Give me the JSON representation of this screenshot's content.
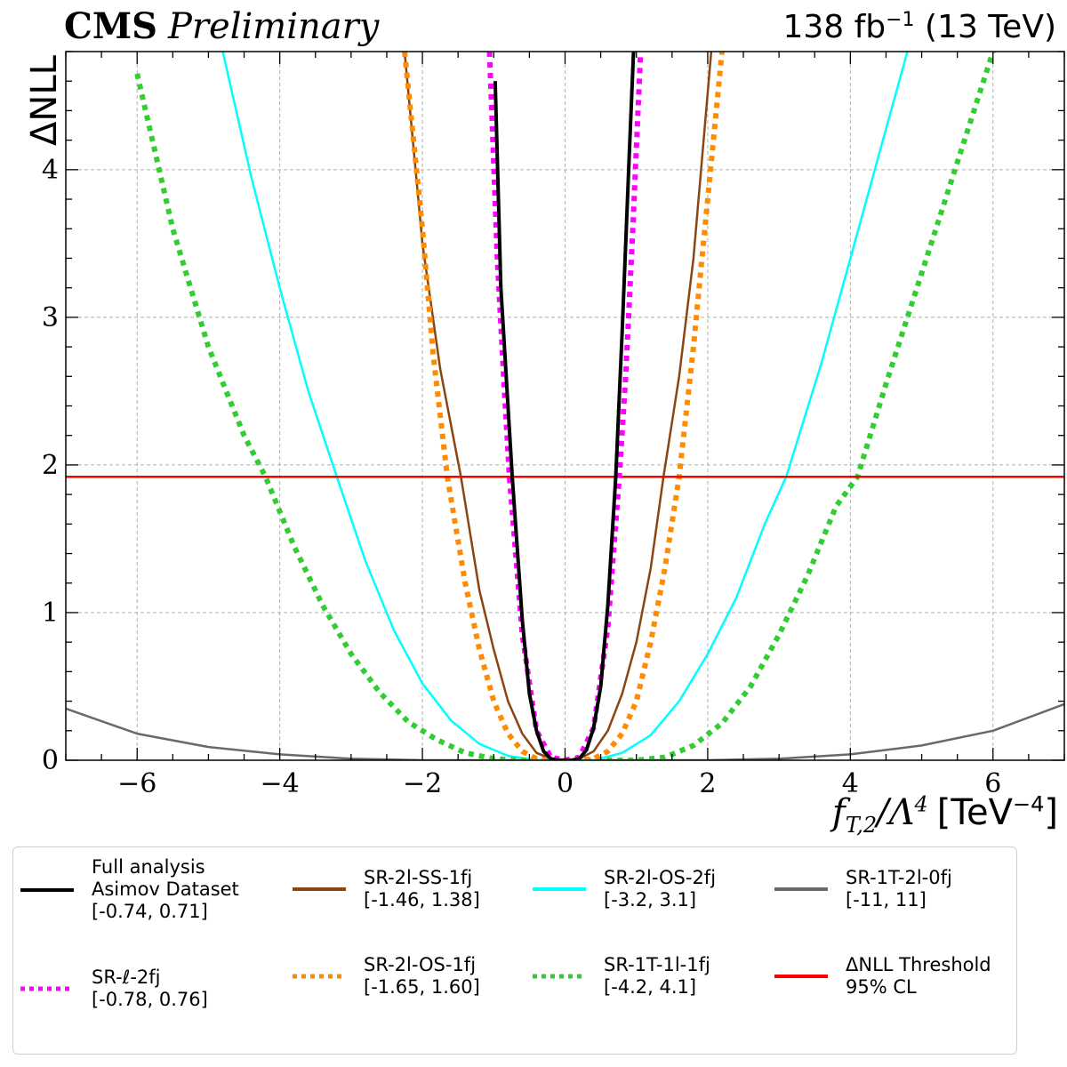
{
  "header": {
    "experiment": "CMS",
    "status": "Preliminary",
    "lumi": "138 fb",
    "lumi_exp": "−1",
    "energy": " (13 TeV)"
  },
  "chart_data": {
    "type": "line",
    "ylabel": "ΔNLL",
    "xlabel_symbol": "f",
    "xlabel_sub": "T,2",
    "xlabel_mid": "/Λ",
    "xlabel_sup": "4",
    "xlabel_unit": "[TeV",
    "xlabel_unit_sup": "−4",
    "xlabel_unit_end": "]",
    "xlim": [
      -7,
      7
    ],
    "ylim": [
      0,
      4.8
    ],
    "xticks": [
      -6,
      -4,
      -2,
      0,
      2,
      4,
      6
    ],
    "xtick_labels": [
      "−6",
      "−4",
      "−2",
      "0",
      "2",
      "4",
      "6"
    ],
    "yticks": [
      0,
      1,
      2,
      3,
      4
    ],
    "ytick_labels": [
      "0",
      "1",
      "2",
      "3",
      "4"
    ],
    "grid": true,
    "legend_position": "below",
    "series": [
      {
        "name": "Full analysis",
        "name2": "Asimov Dataset",
        "interval": "[-0.74, 0.71]",
        "color": "#000000",
        "style": "solid",
        "width": 4,
        "x": [
          -0.98,
          -0.9,
          -0.8,
          -0.74,
          -0.6,
          -0.5,
          -0.4,
          -0.3,
          -0.2,
          -0.1,
          0,
          0.1,
          0.2,
          0.3,
          0.4,
          0.5,
          0.6,
          0.71,
          0.8,
          0.9,
          0.96
        ],
        "y": [
          4.6,
          3.2,
          2.4,
          1.92,
          0.95,
          0.45,
          0.2,
          0.06,
          0.01,
          0,
          0,
          0,
          0.01,
          0.07,
          0.22,
          0.5,
          1.05,
          1.92,
          2.9,
          4.1,
          4.8
        ]
      },
      {
        "name": "SR-ℓ-2fj",
        "interval": "[-0.78, 0.76]",
        "color": "#ff00ff",
        "style": "dotted",
        "width": 6,
        "x": [
          -1.06,
          -0.95,
          -0.85,
          -0.78,
          -0.6,
          -0.4,
          -0.2,
          0,
          0.2,
          0.4,
          0.6,
          0.76,
          0.85,
          0.95,
          1.06
        ],
        "y": [
          4.8,
          3.4,
          2.5,
          1.92,
          0.85,
          0.2,
          0.02,
          0,
          0.02,
          0.22,
          0.9,
          1.92,
          2.6,
          3.6,
          4.8
        ]
      },
      {
        "name": "SR-2l-SS-1fj",
        "interval": "[-1.46, 1.38]",
        "color": "#8b4513",
        "style": "solid",
        "width": 2.5,
        "x": [
          -2.25,
          -2.0,
          -1.75,
          -1.46,
          -1.2,
          -1.0,
          -0.8,
          -0.6,
          -0.4,
          -0.2,
          0,
          0.2,
          0.4,
          0.6,
          0.8,
          1.0,
          1.2,
          1.38,
          1.6,
          1.8,
          2.05
        ],
        "y": [
          4.8,
          3.5,
          2.65,
          1.92,
          1.15,
          0.75,
          0.4,
          0.18,
          0.05,
          0.01,
          0,
          0.01,
          0.06,
          0.2,
          0.45,
          0.8,
          1.3,
          1.92,
          2.6,
          3.4,
          4.8
        ]
      },
      {
        "name": "SR-2l-OS-1fj",
        "interval": "[-1.65, 1.60]",
        "color": "#ff8c00",
        "style": "dotted",
        "width": 6,
        "x": [
          -2.25,
          -2.0,
          -1.85,
          -1.65,
          -1.4,
          -1.2,
          -1.0,
          -0.8,
          -0.6,
          -0.4,
          -0.2,
          0,
          0.2,
          0.4,
          0.6,
          0.8,
          1.0,
          1.2,
          1.4,
          1.6,
          1.8,
          2.0,
          2.2
        ],
        "y": [
          4.8,
          3.6,
          2.75,
          1.92,
          1.2,
          0.75,
          0.4,
          0.18,
          0.06,
          0.01,
          0,
          0,
          0,
          0.01,
          0.06,
          0.18,
          0.4,
          0.8,
          1.3,
          1.92,
          2.8,
          3.8,
          4.8
        ]
      },
      {
        "name": "SR-2l-OS-2fj",
        "interval": "[-3.2, 3.1]",
        "color": "#00ffff",
        "style": "solid",
        "width": 2.5,
        "x": [
          -4.8,
          -4.4,
          -4.0,
          -3.6,
          -3.2,
          -2.8,
          -2.4,
          -2.0,
          -1.6,
          -1.2,
          -0.8,
          -0.4,
          0,
          0.4,
          0.8,
          1.2,
          1.6,
          2.0,
          2.4,
          2.8,
          3.1,
          3.6,
          4.0,
          4.4,
          4.8
        ],
        "y": [
          4.8,
          3.95,
          3.2,
          2.5,
          1.92,
          1.35,
          0.88,
          0.52,
          0.27,
          0.11,
          0.03,
          0,
          0,
          0,
          0.05,
          0.17,
          0.4,
          0.72,
          1.1,
          1.6,
          1.92,
          2.7,
          3.4,
          4.1,
          4.8
        ]
      },
      {
        "name": "SR-1T-1l-1fj",
        "interval": "[-4.2, 4.1]",
        "color": "#32cd32",
        "style": "dotted",
        "width": 6,
        "x": [
          -6,
          -5.5,
          -5,
          -4.5,
          -4.2,
          -3.8,
          -3.4,
          -3,
          -2.6,
          -2.2,
          -1.8,
          -1.4,
          -1,
          -0.6,
          -0.2,
          0.2,
          0.6,
          1.0,
          1.4,
          1.8,
          2.2,
          2.6,
          3.0,
          3.4,
          3.8,
          4.1,
          4.5,
          5.0,
          5.5,
          6.0
        ],
        "y": [
          4.65,
          3.6,
          2.8,
          2.2,
          1.92,
          1.45,
          1.05,
          0.72,
          0.46,
          0.26,
          0.14,
          0.05,
          0.01,
          0,
          0,
          0,
          0,
          0,
          0.02,
          0.1,
          0.25,
          0.5,
          0.85,
          1.25,
          1.72,
          1.92,
          2.55,
          3.3,
          4.05,
          4.8
        ]
      },
      {
        "name": "SR-1T-2l-0fj",
        "interval": "[-11, 11]",
        "color": "#696969",
        "style": "solid",
        "width": 2.5,
        "x": [
          -7,
          -6,
          -5,
          -4,
          -3,
          -2,
          -1,
          0,
          1,
          2,
          3,
          4,
          5,
          6,
          7
        ],
        "y": [
          0.35,
          0.18,
          0.09,
          0.04,
          0.01,
          0,
          0,
          0,
          0,
          0,
          0.01,
          0.04,
          0.1,
          0.2,
          0.38
        ]
      },
      {
        "name": "ΔNLL Threshold",
        "name2": "95% CL",
        "color": "#ff0000",
        "style": "solid",
        "width": 2.5,
        "x": [
          -7,
          7
        ],
        "y": [
          1.92,
          1.92
        ]
      }
    ]
  }
}
